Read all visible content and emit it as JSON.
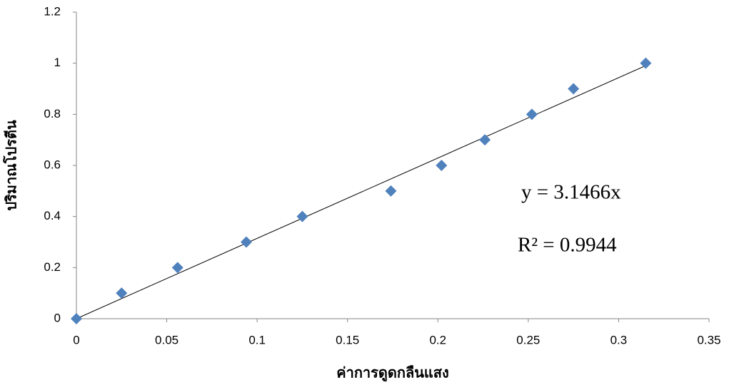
{
  "chart_data": {
    "type": "scatter",
    "x_label": "ค่าการดูดกลืนแสง",
    "y_label": "ปริมาณโปรตีน",
    "x": [
      0,
      0.025,
      0.056,
      0.094,
      0.125,
      0.174,
      0.202,
      0.226,
      0.252,
      0.275,
      0.315
    ],
    "values": [
      0,
      0.1,
      0.2,
      0.3,
      0.4,
      0.5,
      0.6,
      0.7,
      0.8,
      0.9,
      1.0
    ],
    "color": "#4f81bd",
    "xlim": [
      0,
      0.35
    ],
    "xticks": [
      0,
      0.05,
      0.1,
      0.15,
      0.2,
      0.25,
      0.3,
      0.35
    ],
    "ylim": [
      0,
      1.2
    ],
    "yticks": [
      0,
      0.2,
      0.4,
      0.6,
      0.8,
      1,
      1.2
    ],
    "trendline": {
      "equation": "y = 3.1466x",
      "r_squared": "R² = 0.9944"
    }
  }
}
